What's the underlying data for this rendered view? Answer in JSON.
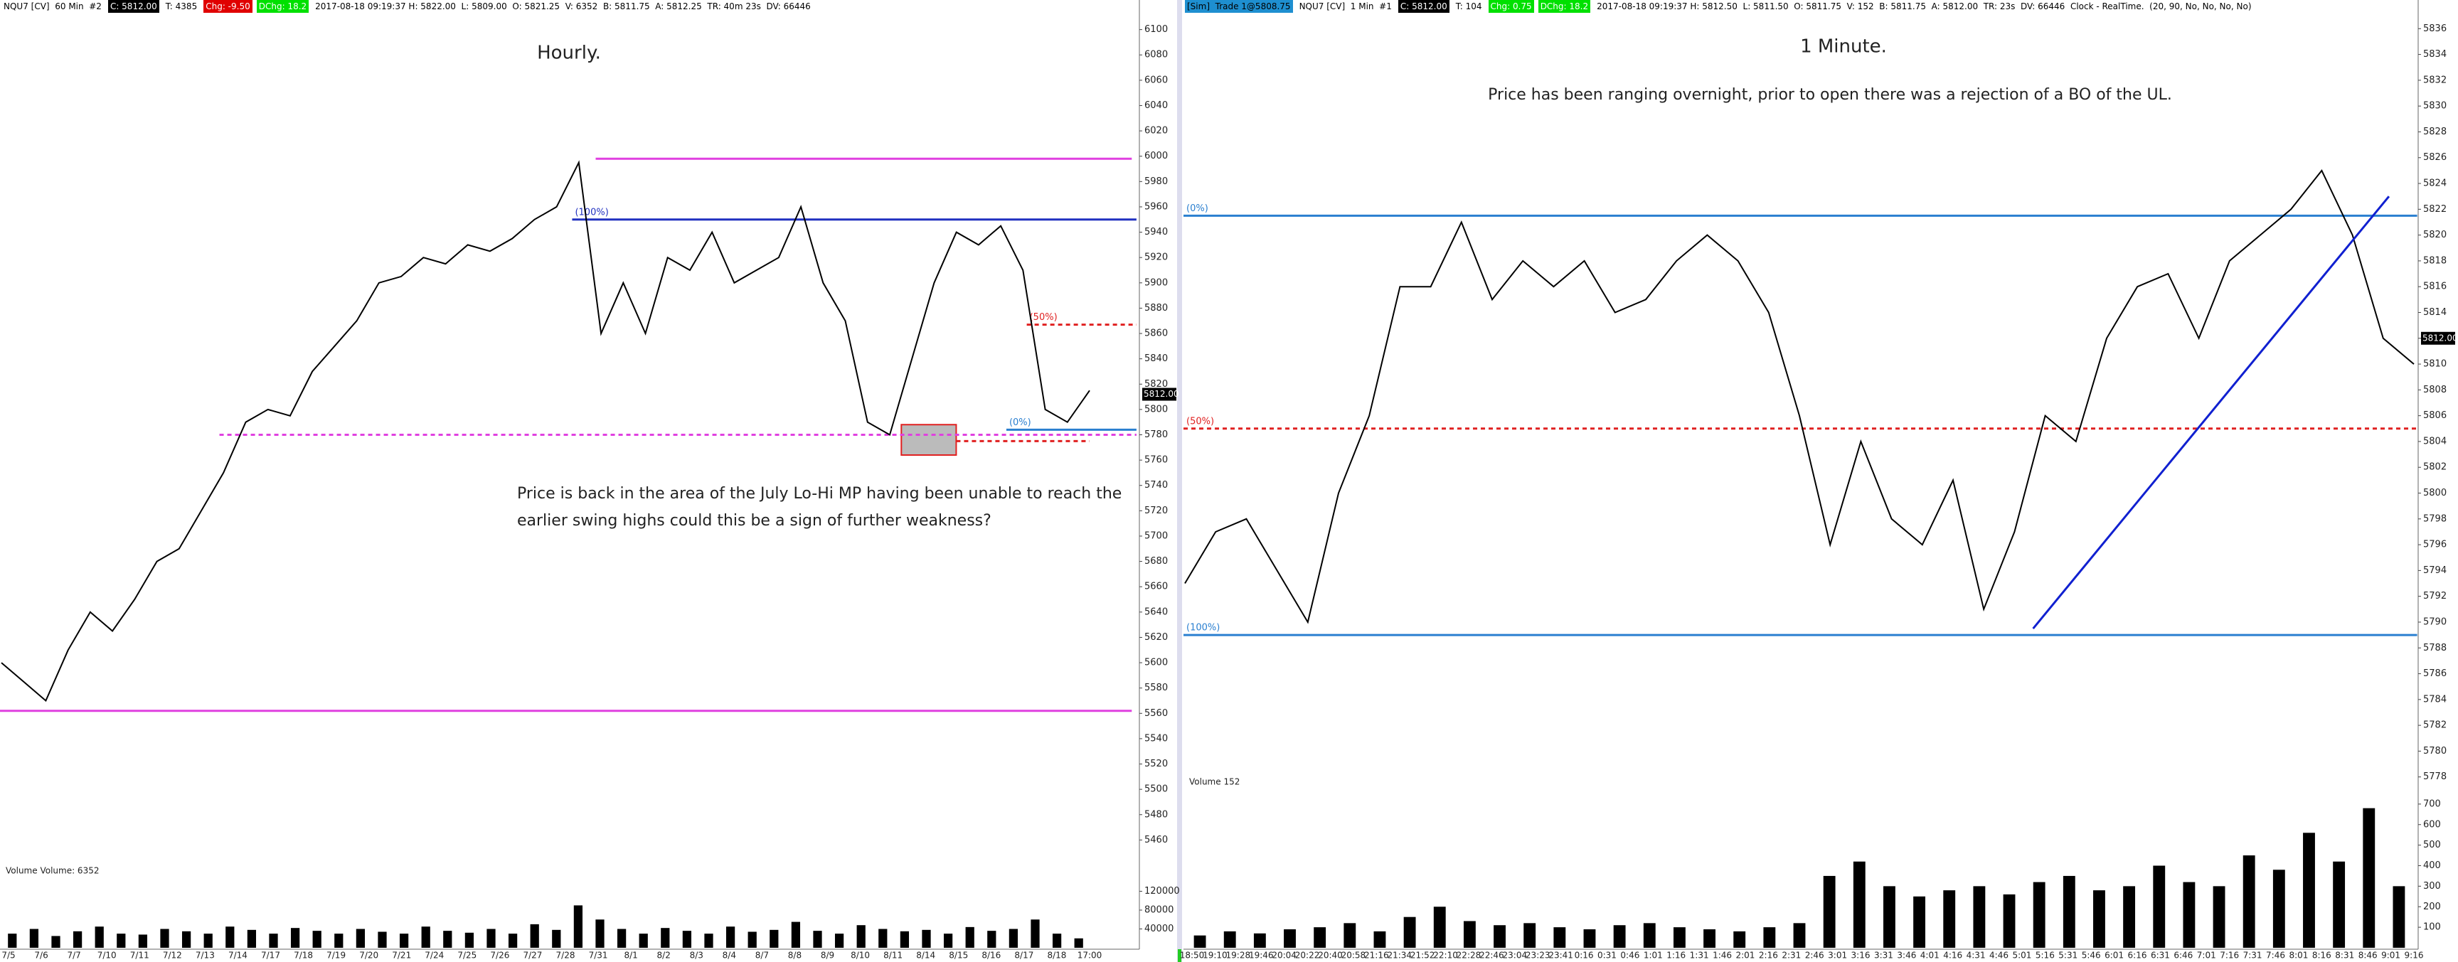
{
  "panels": [
    {
      "header": [
        {
          "text": "NQU7 [CV]  60 Min  #2"
        },
        {
          "text": "C: 5812.00",
          "bg": "#000000",
          "fg": "#ffffff"
        },
        {
          "text": "T: 4385"
        },
        {
          "text": "Chg: -9.50",
          "bg": "#e00000",
          "fg": "#ffffff"
        },
        {
          "text": "DChg: 18.2",
          "bg": "#00e000",
          "fg": "#ffffff"
        },
        {
          "text": "2017-08-18 09:19:37 H: 5822.00  L: 5809.00  O: 5821.25  V: 6352  B: 5811.75  A: 5812.25  TR: 40m 23s  DV: 66446"
        }
      ],
      "title": "Hourly.",
      "annotation": [
        "Price is back in the area of the July Lo-Hi MP having been unable to reach the",
        "earlier swing highs could this be a sign of further weakness?"
      ],
      "ylim": [
        5440,
        6120
      ],
      "yticks": [
        5460,
        5480,
        5500,
        5520,
        5540,
        5560,
        5580,
        5600,
        5620,
        5640,
        5660,
        5680,
        5700,
        5720,
        5740,
        5760,
        5780,
        5800,
        5820,
        5840,
        5860,
        5880,
        5900,
        5920,
        5940,
        5960,
        5980,
        6000,
        6020,
        6040,
        6060,
        6080,
        6100
      ],
      "last": {
        "value": 5812,
        "label": "5812.00"
      },
      "price": {
        "color": "#000000",
        "values": [
          5600,
          5585,
          5570,
          5610,
          5640,
          5625,
          5650,
          5680,
          5690,
          5720,
          5750,
          5790,
          5800,
          5795,
          5830,
          5850,
          5870,
          5900,
          5905,
          5920,
          5915,
          5930,
          5925,
          5935,
          5950,
          5960,
          5995,
          5860,
          5900,
          5860,
          5920,
          5910,
          5940,
          5900,
          5910,
          5920,
          5960,
          5900,
          5870,
          5790,
          5780,
          5840,
          5900,
          5940,
          5930,
          5945,
          5910,
          5800,
          5790,
          5815
        ]
      },
      "levels": [
        {
          "value": 5998,
          "color": "#e040e0"
        },
        {
          "value": 5562,
          "color": "#e040e0"
        },
        {
          "value": 5950,
          "color": "#2030c0",
          "label": "(100%)"
        },
        {
          "value": 5867,
          "color": "#e02020",
          "dash": true,
          "label": "(50%)"
        },
        {
          "value": 5784,
          "color": "#2a7fd0",
          "label": "(0%)"
        },
        {
          "value": 5780,
          "color": "#e040e0",
          "dash": true
        },
        {
          "value": 5775,
          "color": "#e02020",
          "dash": true
        }
      ],
      "zone": [
        5764,
        5788
      ],
      "volume": {
        "label": "Volume  Volume: 6352",
        "ylim": [
          0,
          160000
        ],
        "yticks": [
          40000,
          80000,
          120000
        ],
        "color": "#000000",
        "values": [
          30000,
          40000,
          25000,
          35000,
          45000,
          30000,
          28000,
          40000,
          35000,
          30000,
          45000,
          38000,
          30000,
          42000,
          36000,
          30000,
          40000,
          34000,
          30000,
          45000,
          36000,
          32000,
          40000,
          30000,
          50000,
          38000,
          90000,
          60000,
          40000,
          30000,
          42000,
          36000,
          30000,
          45000,
          34000,
          38000,
          55000,
          36000,
          30000,
          48000,
          40000,
          35000,
          38000,
          30000,
          44000,
          36000,
          40000,
          60000,
          30000,
          20000
        ]
      },
      "xlabels": [
        "7/5",
        "7/6",
        "7/7",
        "7/10",
        "7/11",
        "7/12",
        "7/13",
        "7/14",
        "7/17",
        "7/18",
        "7/19",
        "7/20",
        "7/21",
        "7/24",
        "7/25",
        "7/26",
        "7/27",
        "7/28",
        "7/31",
        "8/1",
        "8/2",
        "8/3",
        "8/4",
        "8/7",
        "8/8",
        "8/9",
        "8/10",
        "8/11",
        "8/14",
        "8/15",
        "8/16",
        "8/17",
        "8/18",
        "17:00"
      ]
    },
    {
      "header": [
        {
          "text": "[Sim]  Trade 1@5808.75",
          "bg": "#1e8fd0",
          "fg": "#000000"
        },
        {
          "text": "NQU7 [CV]  1 Min  #1"
        },
        {
          "text": "C: 5812.00",
          "bg": "#000000",
          "fg": "#ffffff"
        },
        {
          "text": "T: 104"
        },
        {
          "text": "Chg: 0.75",
          "bg": "#00e000",
          "fg": "#ffffff"
        },
        {
          "text": "DChg: 18.2",
          "bg": "#00e000",
          "fg": "#ffffff"
        },
        {
          "text": "2017-08-18 09:19:37 H: 5812.50  L: 5811.50  O: 5811.75  V: 152  B: 5811.75  A: 5812.00  TR: 23s  DV: 66446  Clock - RealTime.  (20, 90, No, No, No, No)"
        }
      ],
      "title": "1 Minute.",
      "annotation": [
        "Price has been ranging overnight, prior to open there was a rejection of a BO of the UL."
      ],
      "ylim": [
        5776,
        5838
      ],
      "yticks": [
        5778,
        5780,
        5782,
        5784,
        5786,
        5788,
        5790,
        5792,
        5794,
        5796,
        5798,
        5800,
        5802,
        5804,
        5806,
        5808,
        5810,
        5812,
        5814,
        5816,
        5818,
        5820,
        5822,
        5824,
        5826,
        5828,
        5830,
        5832,
        5834,
        5836
      ],
      "last": {
        "value": 5812,
        "label": "5812.00"
      },
      "price": {
        "color": "#000000",
        "values": [
          5793,
          5797,
          5798,
          5794,
          5790,
          5800,
          5806,
          5816,
          5816,
          5821,
          5815,
          5818,
          5816,
          5818,
          5814,
          5815,
          5818,
          5820,
          5818,
          5814,
          5806,
          5796,
          5804,
          5798,
          5796,
          5801,
          5791,
          5797,
          5806,
          5804,
          5812,
          5816,
          5817,
          5812,
          5818,
          5820,
          5822,
          5825,
          5820,
          5812,
          5810
        ]
      },
      "levels": [
        {
          "value": 5821.5,
          "color": "#2a7fd0",
          "label": "(0%)"
        },
        {
          "value": 5805,
          "color": "#e02020",
          "dash": true,
          "label": "(50%)"
        },
        {
          "value": 5789,
          "color": "#2a7fd0",
          "label": "(100%)"
        }
      ],
      "trendline": [
        5789.5,
        5823
      ],
      "volume": {
        "label": "Volume  152",
        "ylim": [
          0,
          800
        ],
        "yticks": [
          100,
          200,
          300,
          400,
          500,
          600,
          700
        ],
        "color": "#000000",
        "values": [
          60,
          80,
          70,
          90,
          100,
          120,
          80,
          150,
          200,
          130,
          110,
          120,
          100,
          90,
          110,
          120,
          100,
          90,
          80,
          100,
          120,
          350,
          420,
          300,
          250,
          280,
          300,
          260,
          320,
          350,
          280,
          300,
          400,
          320,
          300,
          450,
          380,
          560,
          420,
          680,
          300
        ]
      },
      "xlabels": [
        "18:50",
        "19:10",
        "19:28",
        "19:46",
        "20:04",
        "20:22",
        "20:40",
        "20:58",
        "21:16",
        "21:34",
        "21:52",
        "22:10",
        "22:28",
        "22:46",
        "23:04",
        "23:23",
        "23:41",
        "0:16",
        "0:31",
        "0:46",
        "1:01",
        "1:16",
        "1:31",
        "1:46",
        "2:01",
        "2:16",
        "2:31",
        "2:46",
        "3:01",
        "3:16",
        "3:31",
        "3:46",
        "4:01",
        "4:16",
        "4:31",
        "4:46",
        "5:01",
        "5:16",
        "5:31",
        "5:46",
        "6:01",
        "6:16",
        "6:31",
        "6:46",
        "7:01",
        "7:16",
        "7:31",
        "7:46",
        "8:01",
        "8:16",
        "8:31",
        "8:46",
        "9:01",
        "9:16"
      ]
    }
  ]
}
